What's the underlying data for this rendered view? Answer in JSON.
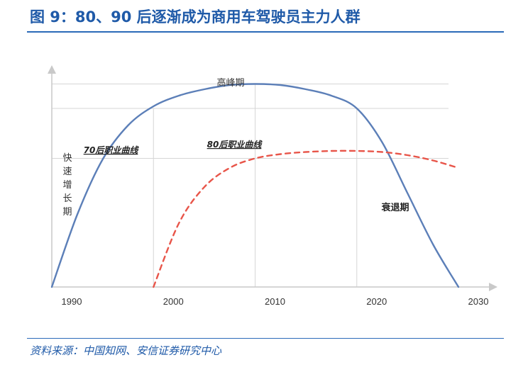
{
  "figure": {
    "title": "图 9：80、90 后逐渐成为商用车驾驶员主力人群",
    "source": "资料来源：中国知网、安信证券研究中心"
  },
  "chart_data": {
    "type": "line",
    "x": [
      1990,
      1992.5,
      1995,
      1997.5,
      2000,
      2002.5,
      2005,
      2007.5,
      2010,
      2012.5,
      2015,
      2017.5,
      2020,
      2022.5,
      2025,
      2027.5,
      2030
    ],
    "xlim": [
      1990,
      2031
    ],
    "ylim": [
      0,
      100
    ],
    "x_ticks": [
      "1990",
      "2000",
      "2010",
      "2020",
      "2030"
    ],
    "series": [
      {
        "name": "70后职业曲线",
        "style": "solid",
        "color": "#5b7fb8",
        "x": [
          1990,
          1992.5,
          1995,
          1997.5,
          2000,
          2002.5,
          2005,
          2007.5,
          2010,
          2012.5,
          2015,
          2017.5,
          2020,
          2022.5,
          2025,
          2027.5,
          2030
        ],
        "y": [
          0,
          34,
          60,
          76,
          85,
          90,
          93,
          95,
          95.5,
          95,
          93,
          90,
          84,
          68,
          44,
          20,
          0
        ]
      },
      {
        "name": "80后职业曲线",
        "style": "dashed",
        "color": "#e8544a",
        "x": [
          2000,
          2002.5,
          2005,
          2007.5,
          2010,
          2012.5,
          2015,
          2017.5,
          2020,
          2022.5,
          2025,
          2027.5,
          2030
        ],
        "y": [
          0,
          30,
          47,
          56,
          60.5,
          62.5,
          63.5,
          64,
          64,
          63.5,
          62,
          59.5,
          56
        ]
      }
    ],
    "gridlines_y": [
      95.5,
      84,
      60.5
    ],
    "gridlines_x": [
      2000,
      2010,
      2020
    ],
    "annotations": {
      "peak": "高峰期",
      "growth": [
        "快",
        "速",
        "增",
        "长",
        "期"
      ],
      "decline": "衰退期",
      "curve70": "70后职业曲线",
      "curve80": "80后职业曲线"
    }
  }
}
